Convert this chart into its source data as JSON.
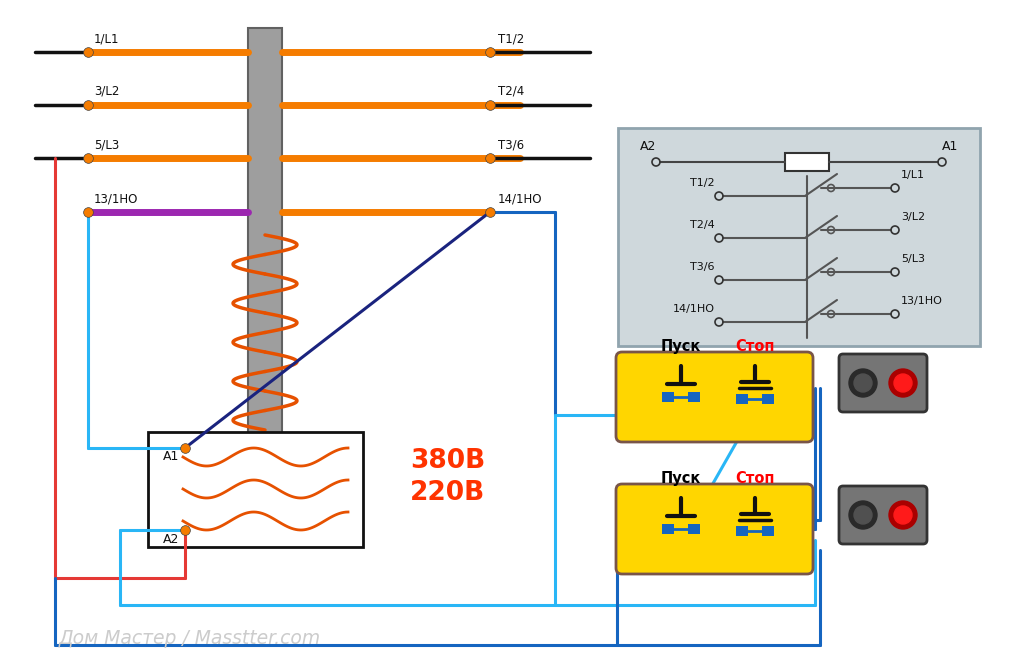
{
  "bg_color": "#ffffff",
  "watermark": "Дом Мастер / Masstter.com",
  "voltage_text_1": "380В",
  "voltage_text_2": "220В",
  "voltage_color": "#ff3300",
  "push_label": "Пуск",
  "stop_label": "Стоп",
  "stop_color": "#ff0000",
  "push_color": "#000000",
  "wire_blue": "#1565C0",
  "wire_cyan": "#29B6F6",
  "wire_red": "#e53935",
  "wire_orange": "#F57C00",
  "wire_black": "#111111",
  "wire_purple": "#9C27B0",
  "wire_darkblue": "#1a237e",
  "button_fill": "#FFD600",
  "button_stroke": "#795548",
  "indicator_bg": "#757575",
  "coil_color": "#E65100",
  "schematic_bg": "#CFD8DC",
  "schematic_border": "#90A4AE",
  "core_color": "#9E9E9E",
  "core_border": "#616161",
  "label_13": "13/1НО",
  "label_14": "14/1НО",
  "label_1L1": "1/L1",
  "label_3L2": "3/L2",
  "label_5L3": "5/L3",
  "label_T12": "T1/2",
  "label_T24": "T2/4",
  "label_T36": "T3/6",
  "label_A1": "A1",
  "label_A2": "A2",
  "schema_A2": "A2",
  "schema_A1": "A1",
  "schema_rows": [
    [
      "T1/2",
      "1/L1"
    ],
    [
      "T2/4",
      "3/L2"
    ],
    [
      "T3/6",
      "5/L3"
    ],
    [
      "14/1НО",
      "13/1НО"
    ]
  ]
}
